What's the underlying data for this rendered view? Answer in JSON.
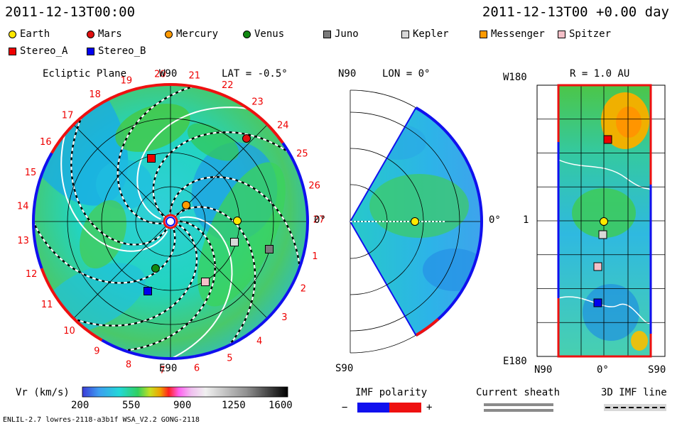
{
  "header": {
    "datetime": "2011-12-13T00:00",
    "offset": "2011-12-13T00 +0.00 day"
  },
  "legend": [
    {
      "name": "Earth",
      "color": "#ffe800",
      "shape": "circle"
    },
    {
      "name": "Mars",
      "color": "#e01010",
      "shape": "circle"
    },
    {
      "name": "Mercury",
      "color": "#ff9a00",
      "shape": "circle"
    },
    {
      "name": "Venus",
      "color": "#118811",
      "shape": "circle"
    },
    {
      "name": "Juno",
      "color": "#7a7a7a",
      "shape": "square"
    },
    {
      "name": "Kepler",
      "color": "#d8d8d8",
      "shape": "square"
    },
    {
      "name": "Messenger",
      "color": "#ff9a00",
      "shape": "square"
    },
    {
      "name": "Spitzer",
      "color": "#f4c0c8",
      "shape": "square"
    },
    {
      "name": "Stereo_A",
      "color": "#ee0000",
      "shape": "square"
    },
    {
      "name": "Stereo_B",
      "color": "#0000ee",
      "shape": "square"
    }
  ],
  "panels": {
    "ecliptic": {
      "title": "Ecliptic Plane",
      "lat": "LAT = -0.5°",
      "top_label": "W90",
      "bottom_label": "E90",
      "right_label": "0°",
      "carrington_ticks": [
        "1",
        "2",
        "3",
        "4",
        "5",
        "6",
        "7",
        "8",
        "9",
        "10",
        "11",
        "12",
        "13",
        "14",
        "15",
        "16",
        "17",
        "18",
        "19",
        "20",
        "21",
        "22",
        "23",
        "24",
        "25",
        "26",
        "27"
      ]
    },
    "meridional": {
      "title": "LON = 0°",
      "top_label": "N90",
      "bottom_label": "S90",
      "right_label": "0°"
    },
    "sphere": {
      "title": "R = 1.0 AU",
      "top_left": "W180",
      "bottom_left": "E180",
      "mid_left": "1",
      "x_labels": [
        "N90",
        "0°",
        "S90"
      ]
    }
  },
  "colorbar": {
    "label": "Vr (km/s)",
    "ticks": [
      "200",
      "550",
      "900",
      "1250",
      "1600"
    ],
    "range": [
      200,
      1600
    ]
  },
  "imf": {
    "label": "IMF polarity",
    "minus": "−",
    "plus": "+"
  },
  "sheath": {
    "label": "Current sheath"
  },
  "imf3d": {
    "label": "3D IMF line"
  },
  "footer": {
    "model": "ENLIL-2.7 lowres-2118-a3b1f WSA_V2.2 GONG-2118"
  },
  "chart_data": {
    "type": "heatmap",
    "title": "Vr (km/s)",
    "ylim": [
      200,
      1600
    ],
    "series": [
      {
        "name": "Earth",
        "values": [
          1.0
        ]
      },
      {
        "name": "Mars",
        "values": [
          1.55
        ]
      },
      {
        "name": "Mercury",
        "values": [
          0.31
        ]
      },
      {
        "name": "Venus",
        "values": [
          0.72
        ]
      }
    ]
  }
}
